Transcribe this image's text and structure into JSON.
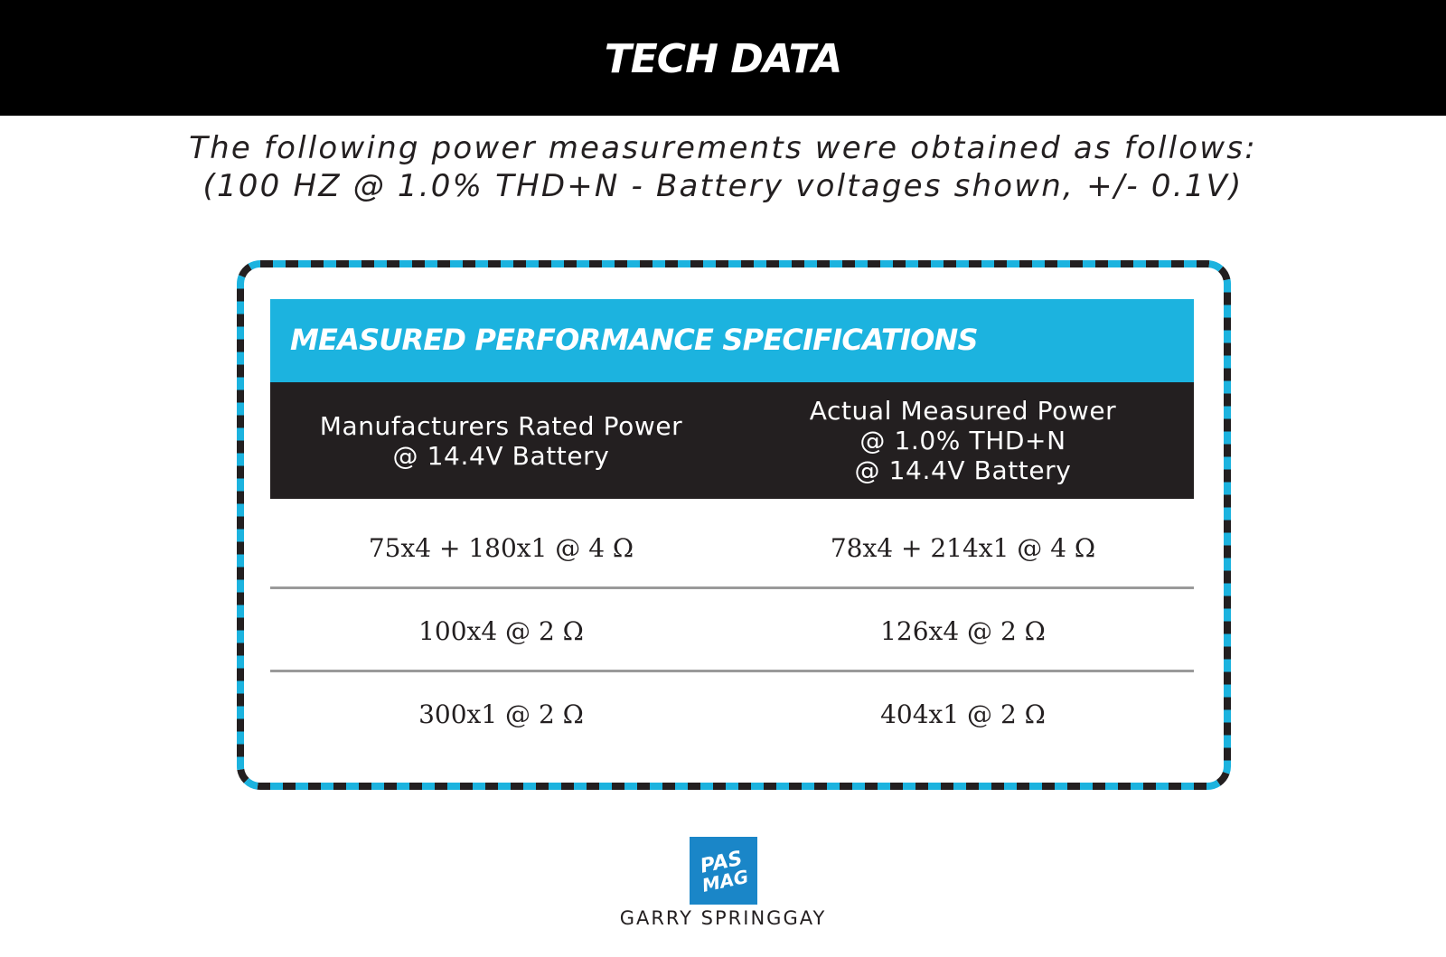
{
  "header": {
    "title": "TECH DATA"
  },
  "intro": {
    "line1": "The following power measurements were obtained as follows:",
    "line2": "(100 HZ @ 1.0% THD+N - Battery voltages shown, +/- 0.1V)"
  },
  "table": {
    "title": "MEASURED PERFORMANCE SPECIFICATIONS",
    "columns": [
      {
        "lines": [
          "Manufacturers Rated Power",
          "@ 14.4V Battery"
        ]
      },
      {
        "lines": [
          "Actual Measured Power",
          "@ 1.0% THD+N",
          "@ 14.4V Battery"
        ]
      }
    ],
    "rows": [
      [
        "75x4 + 180x1 @ 4 Ω",
        "78x4 + 214x1 @ 4 Ω"
      ],
      [
        "100x4 @ 2 Ω",
        "126x4 @ 2 Ω"
      ],
      [
        "300x1 @ 2 Ω",
        "404x1 @ 2 Ω"
      ]
    ]
  },
  "logo": {
    "top": "PAS",
    "bottom": "MAG"
  },
  "credit": "GARRY SPRINGGAY",
  "colors": {
    "accent": "#1cb3df",
    "dark": "#231f20",
    "logo": "#1a86c8"
  }
}
